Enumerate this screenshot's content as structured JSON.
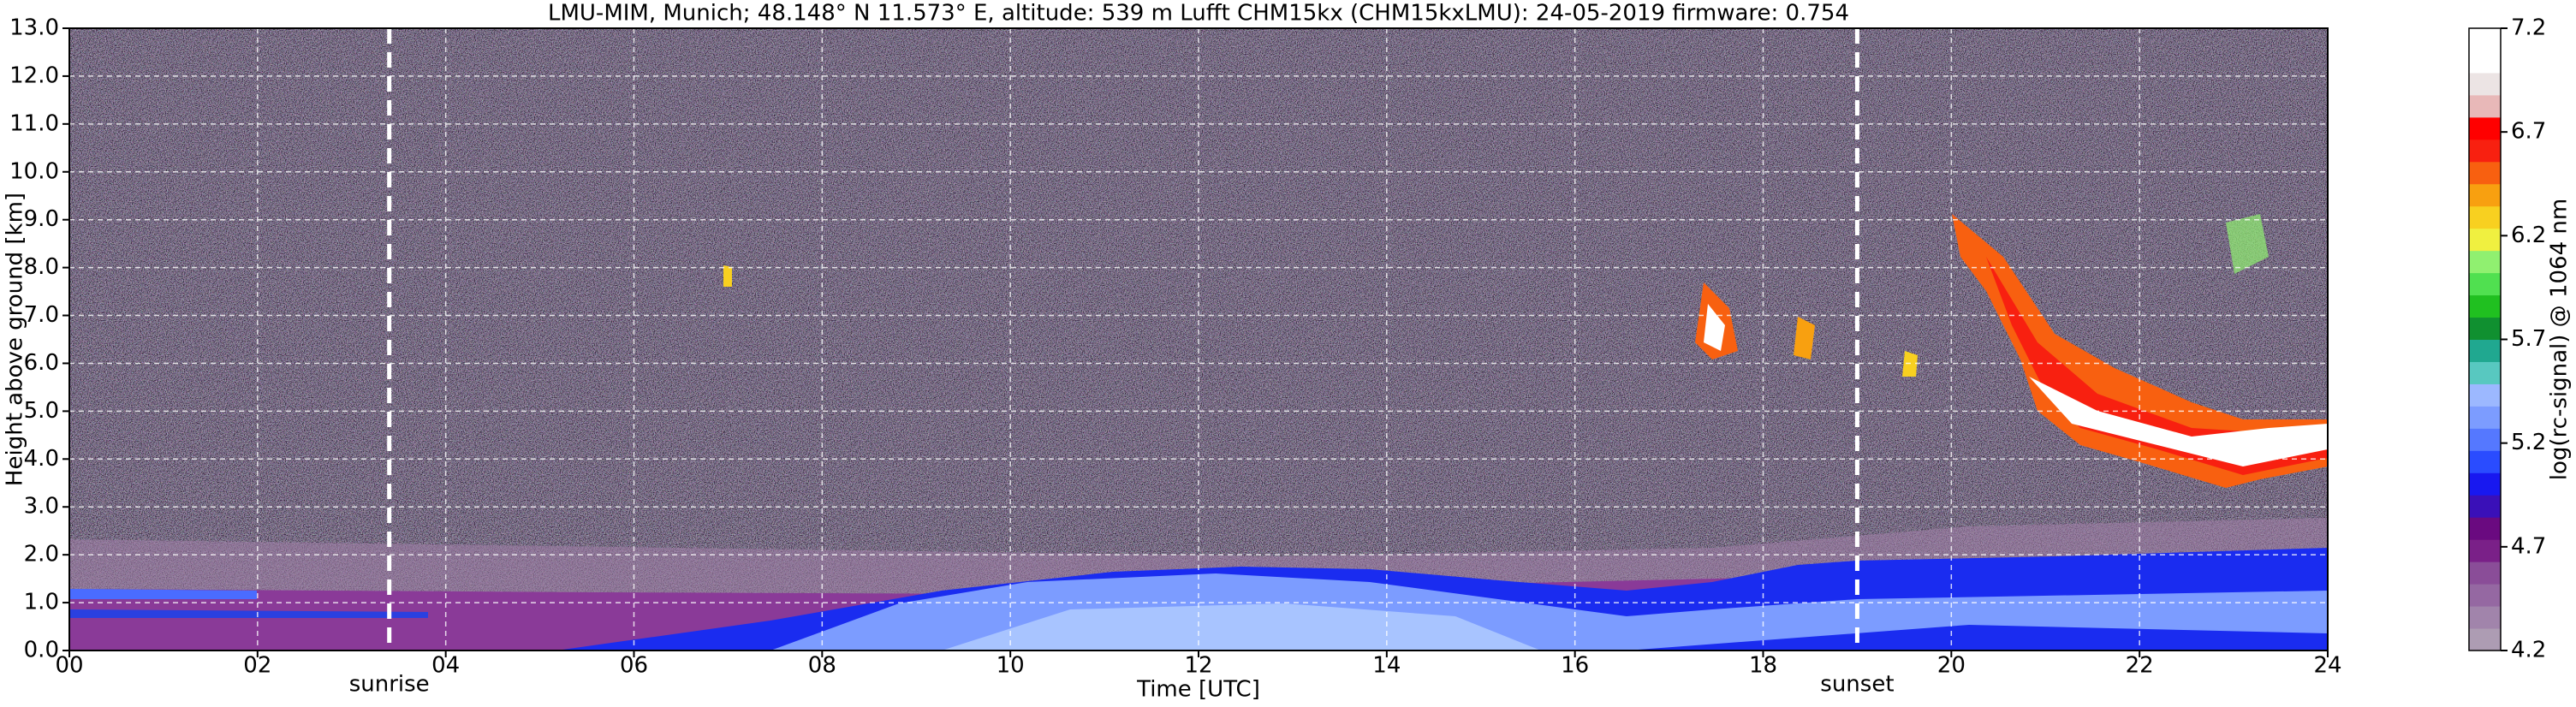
{
  "chart_data": {
    "type": "heatmap",
    "title": "LMU-MIM, Munich; 48.148° N 11.573° E, altitude: 539 m    Lufft CHM15kx (CHM15kxLMU): 24-05-2019    firmware: 0.754",
    "x_label": "Time [UTC]",
    "y_label": "Height above ground [km]",
    "colorbar_label": "log(rc-signal) @ 1064 nm",
    "xlim": [
      0,
      24
    ],
    "xticks": [
      {
        "value": 0,
        "label": "00"
      },
      {
        "value": 2,
        "label": "02"
      },
      {
        "value": 4,
        "label": "04"
      },
      {
        "value": 6,
        "label": "06"
      },
      {
        "value": 8,
        "label": "08"
      },
      10,
      12,
      14,
      16,
      18,
      20,
      22,
      24
    ],
    "ylim": [
      0,
      13
    ],
    "yticks": [
      {
        "value": 0,
        "label": "0.0"
      },
      {
        "value": 1,
        "label": "1.0"
      },
      {
        "value": 2,
        "label": "2.0"
      },
      {
        "value": 3,
        "label": "3.0"
      },
      {
        "value": 4,
        "label": "4.0"
      },
      {
        "value": 5,
        "label": "5.0"
      },
      {
        "value": 6,
        "label": "6.0"
      },
      {
        "value": 7,
        "label": "7.0"
      },
      {
        "value": 8,
        "label": "8.0"
      },
      {
        "value": 9,
        "label": "9.0"
      },
      {
        "value": 10,
        "label": "10.0"
      },
      {
        "value": 11,
        "label": "11.0"
      },
      {
        "value": 12,
        "label": "12.0"
      },
      {
        "value": 13,
        "label": "13.0"
      }
    ],
    "clim": [
      4.2,
      7.2
    ],
    "cticks": [
      4.2,
      4.7,
      5.2,
      5.7,
      6.2,
      6.7,
      7.2
    ],
    "colormap": [
      "#ad9cb3",
      "#a184ab",
      "#9568a2",
      "#8a4d98",
      "#7a2088",
      "#6a0a80",
      "#3a10b8",
      "#1818f0",
      "#2a4cff",
      "#5578ff",
      "#7c9cff",
      "#9cb8ff",
      "#58c8c0",
      "#20a890",
      "#109030",
      "#20c020",
      "#50e050",
      "#90f070",
      "#f0f040",
      "#f8d020",
      "#f8a010",
      "#f86010",
      "#f82010",
      "#ff0000",
      "#e8b8b8",
      "#ece4e4",
      "#ffffff",
      "#ffffff"
    ],
    "grid": true,
    "annotations": [
      {
        "label": "sunrise",
        "x": 3.4
      },
      {
        "label": "sunset",
        "x": 19.0
      }
    ]
  }
}
